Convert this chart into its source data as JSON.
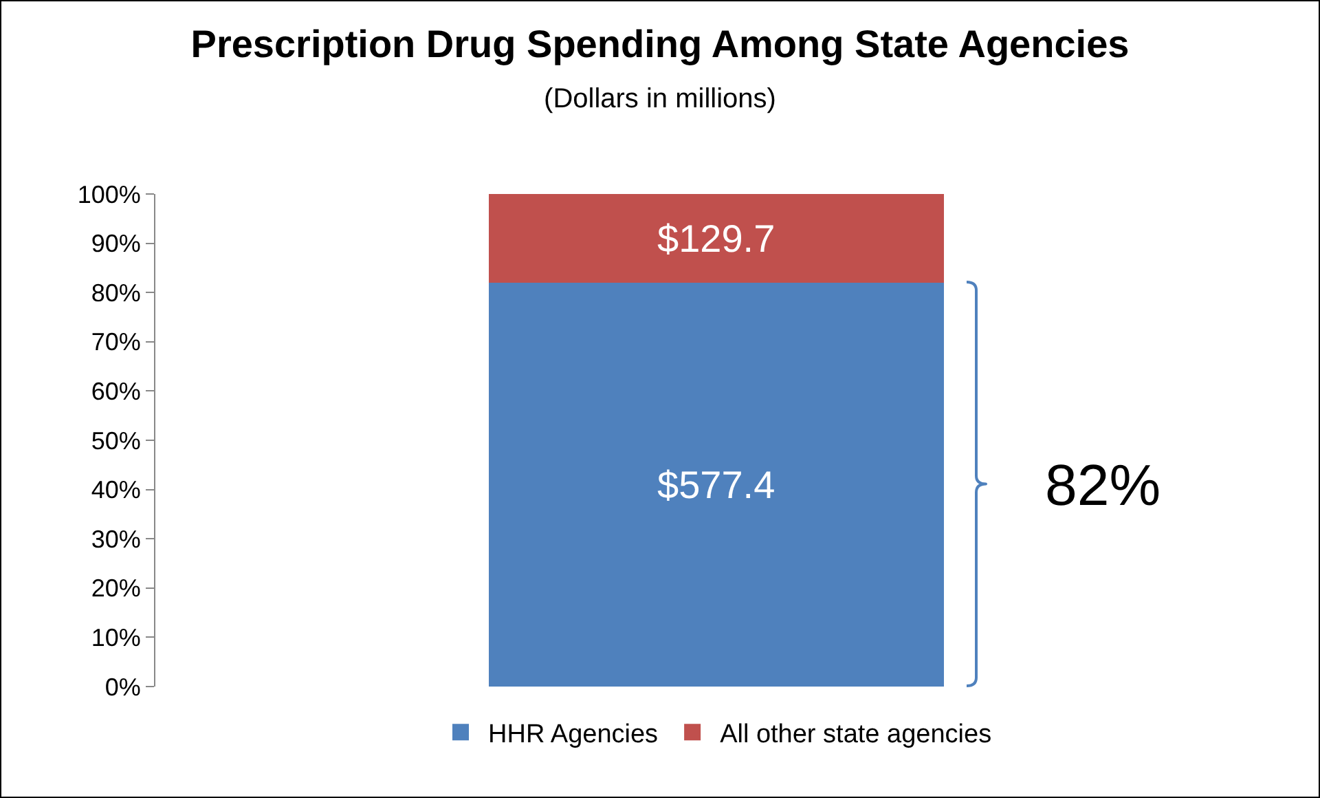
{
  "chart_data": {
    "type": "bar",
    "stacked": true,
    "title": "Prescription Drug Spending Among State Agencies",
    "subtitle": "(Dollars in millions)",
    "categories": [
      null
    ],
    "series": [
      {
        "name": "HHR Agencies",
        "color": "#4f81bd",
        "values": [
          82
        ]
      },
      {
        "name": "All other state agencies",
        "color": "#c0504d",
        "values": [
          18
        ]
      }
    ],
    "ylim": [
      0,
      100
    ],
    "yticks": [
      {
        "value": 0,
        "label": "0%"
      },
      {
        "value": 10,
        "label": "10%"
      },
      {
        "value": 20,
        "label": "20%"
      },
      {
        "value": 30,
        "label": "30%"
      },
      {
        "value": 40,
        "label": "40%"
      },
      {
        "value": 50,
        "label": "50%"
      },
      {
        "value": 60,
        "label": "60%"
      },
      {
        "value": 70,
        "label": "70%"
      },
      {
        "value": 80,
        "label": "80%"
      },
      {
        "value": 90,
        "label": "90%"
      },
      {
        "value": 100,
        "label": "100%"
      }
    ],
    "annotations": [
      "$577.4",
      "$129.7",
      "82%"
    ],
    "grid": false,
    "legend": "bottom"
  }
}
